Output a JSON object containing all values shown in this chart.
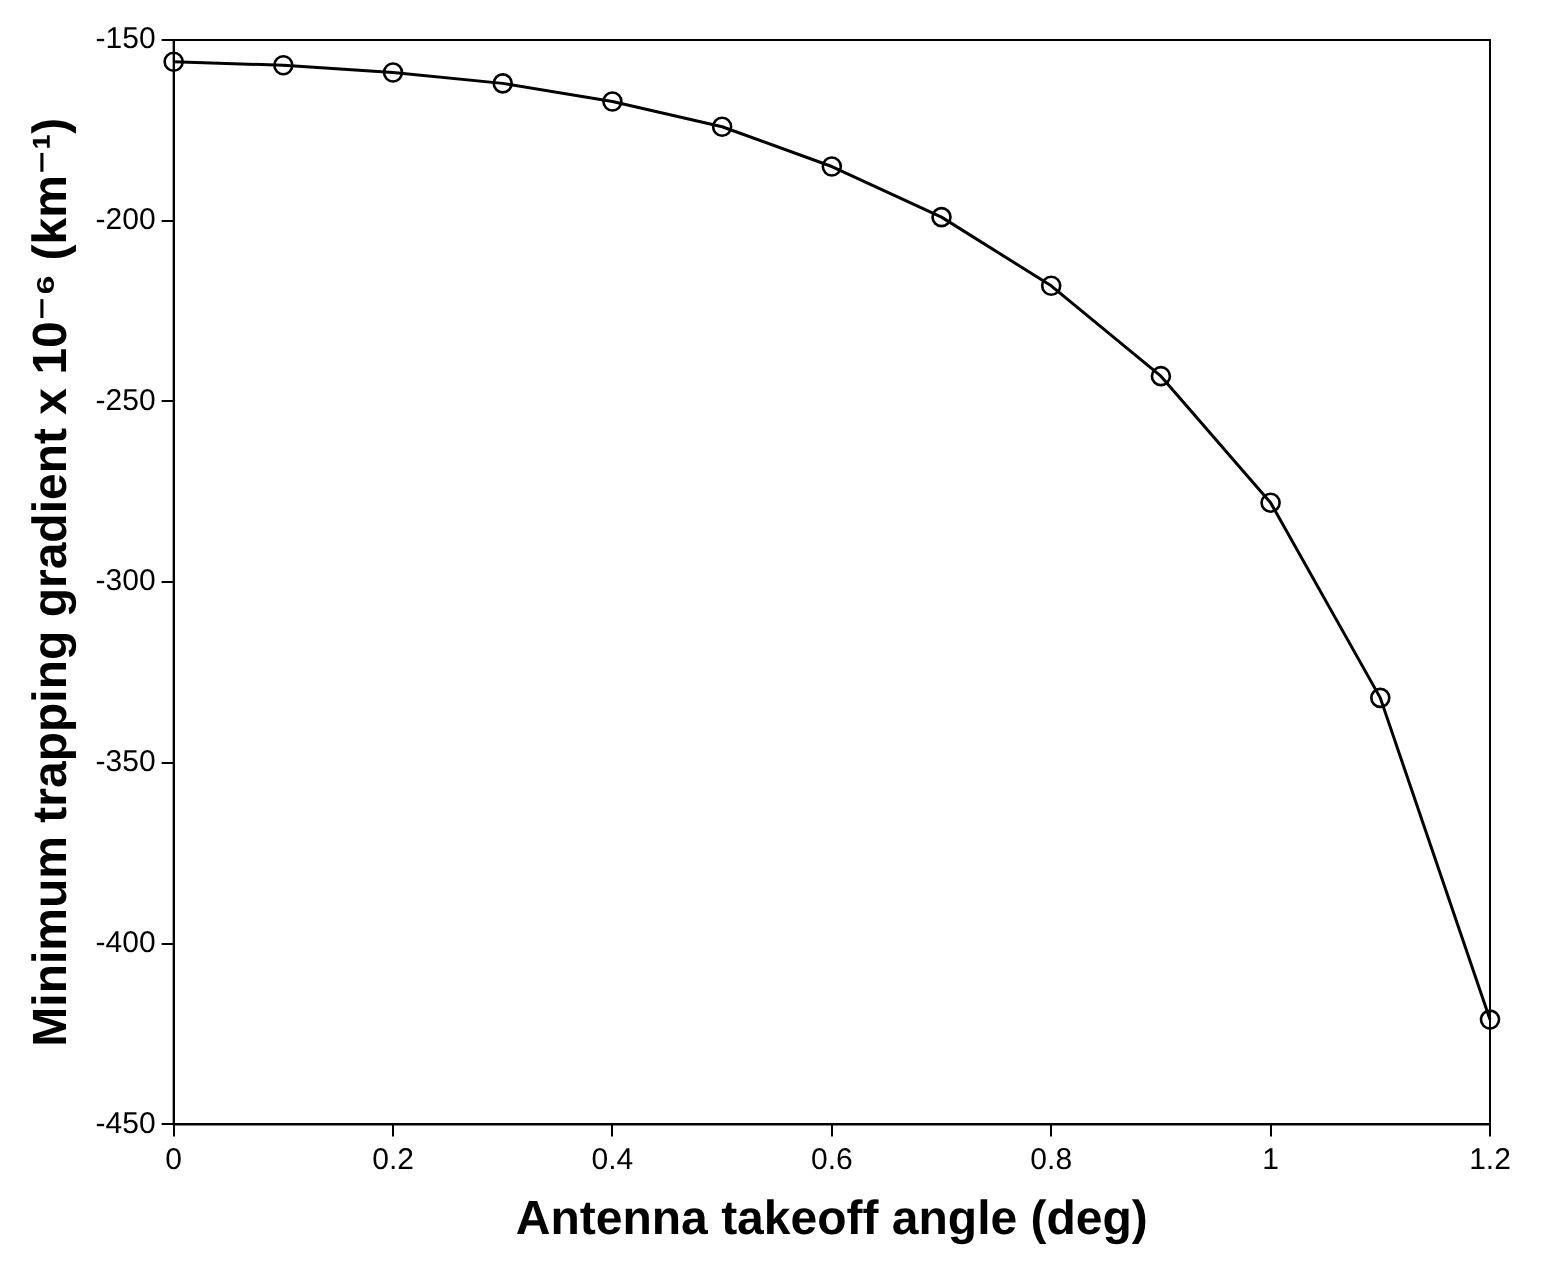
{
  "chart_data": {
    "type": "line",
    "xlabel": "Antenna takeoff angle (deg)",
    "ylabel": "Minimum trapping gradient x 10⁻⁶ (km⁻¹)",
    "x": [
      0,
      0.1,
      0.2,
      0.3,
      0.4,
      0.5,
      0.6,
      0.7,
      0.8,
      0.9,
      1.0,
      1.1,
      1.2
    ],
    "series": [
      {
        "color": "#000000",
        "values": [
          -156,
          -157,
          -159,
          -162,
          -167,
          -174,
          -185,
          -199,
          -218,
          -243,
          -278,
          -332,
          -421
        ]
      }
    ],
    "xlim": [
      0,
      1.2
    ],
    "xticks": [
      0,
      0.2,
      0.4,
      0.6,
      0.8,
      1,
      1.2
    ],
    "ylim": [
      -450,
      -150
    ],
    "yticks": [
      -450,
      -400,
      -350,
      -300,
      -250,
      -200,
      -150
    ],
    "grid": false,
    "legend": false,
    "marker": "circle",
    "line_style": "solid"
  }
}
